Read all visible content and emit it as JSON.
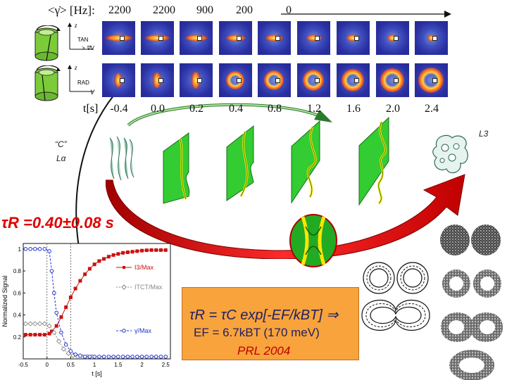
{
  "shear": {
    "label": "<γ̇> [Hz]:",
    "rates": [
      "2200",
      "2200",
      "900",
      "200",
      "0"
    ]
  },
  "rows": {
    "tan_label": "TAN",
    "tan_sub": "> ∇V",
    "rad_label": "RAD",
    "rad_sub": "V",
    "axis_z": "z"
  },
  "time_row": {
    "label": "t[s]",
    "values": [
      "-0.4",
      "0.0",
      "0.2",
      "0.4",
      "0.8",
      "1.2",
      "1.6",
      "2.0",
      "2.4"
    ]
  },
  "phases": {
    "c_label": "“C”",
    "l_alpha": "Lα",
    "l3": "L3"
  },
  "tau": {
    "text": "τR =0.40±0.08 s"
  },
  "equation": {
    "line1": "τR  =  τC  exp[-EF/kBT]  ⇒",
    "line2": "EF = 6.7kBT    (170 meV)",
    "line3": "PRL 2004"
  },
  "colors": {
    "red_arrow": "#e00000",
    "green_arrow": "#2a7a2a",
    "bilayer_green": "#22cc22",
    "bilayer_yellow": "#ffe600",
    "equation_box": "#f8a33c"
  },
  "chart_data": {
    "type": "line",
    "xlabel": "t [s]",
    "ylabel": "Normalized Signal",
    "xlim": [
      -0.5,
      2.6
    ],
    "ylim": [
      0,
      1.05
    ],
    "xticks": [
      "-0.5",
      "0",
      "0.5",
      "1",
      "1.5",
      "2",
      "2.5"
    ],
    "yticks": [
      "0.2",
      "0.4",
      "0.6",
      "0.8",
      "1"
    ],
    "series": [
      {
        "name": "I3/Max",
        "color": "#cc1111",
        "marker": "square",
        "x": [
          -0.45,
          -0.35,
          -0.25,
          -0.15,
          -0.05,
          0.05,
          0.1,
          0.2,
          0.3,
          0.4,
          0.5,
          0.6,
          0.7,
          0.8,
          0.9,
          1.0,
          1.1,
          1.2,
          1.3,
          1.4,
          1.5,
          1.6,
          1.7,
          1.8,
          1.9,
          2.0,
          2.1,
          2.2,
          2.3,
          2.4,
          2.5
        ],
        "y": [
          0.22,
          0.22,
          0.22,
          0.22,
          0.22,
          0.23,
          0.25,
          0.3,
          0.38,
          0.47,
          0.56,
          0.64,
          0.71,
          0.77,
          0.82,
          0.86,
          0.89,
          0.91,
          0.93,
          0.945,
          0.955,
          0.965,
          0.97,
          0.975,
          0.98,
          0.985,
          0.988,
          0.99,
          0.99,
          0.99,
          0.99
        ]
      },
      {
        "name": "ITCT/Max",
        "color": "#888888",
        "marker": "diamond",
        "x": [
          -0.45,
          -0.35,
          -0.25,
          -0.15,
          -0.05,
          0.05,
          0.15,
          0.25,
          0.35,
          0.45,
          0.55,
          0.65,
          0.75,
          0.85,
          0.95
        ],
        "y": [
          0.32,
          0.32,
          0.32,
          0.32,
          0.32,
          0.3,
          0.24,
          0.16,
          0.09,
          0.05,
          0.03,
          0.02,
          0.02,
          0.02,
          0.02
        ]
      },
      {
        "name": "γ̇/Max",
        "color": "#2233cc",
        "marker": "circle",
        "x": [
          -0.45,
          -0.35,
          -0.25,
          -0.15,
          -0.05,
          0.05,
          0.1,
          0.15,
          0.2,
          0.3,
          0.4,
          0.5,
          0.6,
          0.7,
          0.8,
          0.9,
          1.0,
          1.1,
          1.2,
          1.3,
          1.4,
          1.5,
          1.6,
          1.7,
          1.8,
          1.9,
          2.0,
          2.1,
          2.2,
          2.3,
          2.4,
          2.5
        ],
        "y": [
          1.0,
          1.0,
          1.0,
          1.0,
          1.0,
          0.98,
          0.8,
          0.6,
          0.42,
          0.24,
          0.13,
          0.07,
          0.04,
          0.03,
          0.02,
          0.02,
          0.02,
          0.02,
          0.02,
          0.02,
          0.02,
          0.02,
          0.02,
          0.02,
          0.02,
          0.02,
          0.02,
          0.02,
          0.02,
          0.02,
          0.02,
          0.02
        ]
      }
    ]
  }
}
